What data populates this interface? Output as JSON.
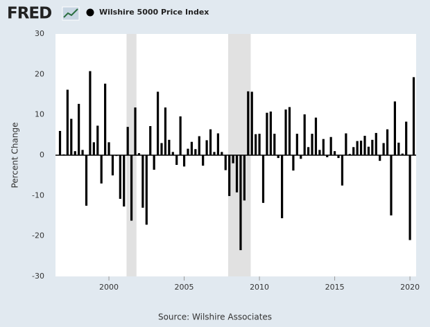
{
  "logo": "FRED",
  "chart_data": {
    "type": "bar",
    "y_label": "Percent Change",
    "source": "Source: Wilshire Associates",
    "series": [
      {
        "name": "Wilshire 5000 Price Index",
        "color": "#000000",
        "values": [
          6,
          0.2,
          16.2,
          9,
          1,
          12.7,
          1.3,
          -12.5,
          20.8,
          3.2,
          7.3,
          -7,
          17.7,
          3.2,
          -5,
          -0.2,
          -10.8,
          -12.7,
          7,
          -16.2,
          11.8,
          0.5,
          -13,
          -17.2,
          7.2,
          -3.6,
          15.7,
          3,
          11.8,
          3.8,
          0.8,
          -2.4,
          9.6,
          -2.8,
          1.6,
          3.3,
          1.5,
          4.7,
          -2.6,
          3.7,
          6.4,
          0.8,
          5.4,
          0.8,
          -3.7,
          -10.1,
          -2,
          -9.2,
          -23.5,
          -11.2,
          15.8,
          15.7,
          5.2,
          5.3,
          -11.8,
          10.5,
          10.8,
          5.3,
          -0.7,
          -15.6,
          11.3,
          11.9,
          -3.8,
          5.3,
          -0.9,
          10.1,
          2,
          5.3,
          9.3,
          1.3,
          4,
          -0.5,
          4.5,
          1,
          -0.7,
          -7.5,
          5.4,
          0.3,
          2,
          3.5,
          3.6,
          4.8,
          2.1,
          3.8,
          5.5,
          -1.4,
          3,
          6.4,
          -14.9,
          13.3,
          3.1,
          0.4,
          8.3,
          -21,
          19.3
        ]
      }
    ],
    "x": [
      1996.75,
      1997,
      1997.25,
      1997.5,
      1997.75,
      1998,
      1998.25,
      1998.5,
      1998.75,
      1999,
      1999.25,
      1999.5,
      1999.75,
      2000,
      2000.25,
      2000.5,
      2000.75,
      2001,
      2001.25,
      2001.5,
      2001.75,
      2002,
      2002.25,
      2002.5,
      2002.75,
      2003,
      2003.25,
      2003.5,
      2003.75,
      2004,
      2004.25,
      2004.5,
      2004.75,
      2005,
      2005.25,
      2005.5,
      2005.75,
      2006,
      2006.25,
      2006.5,
      2006.75,
      2007,
      2007.25,
      2007.5,
      2007.75,
      2008,
      2008.25,
      2008.5,
      2008.75,
      2009,
      2009.25,
      2009.5,
      2009.75,
      2010,
      2010.25,
      2010.5,
      2010.75,
      2011,
      2011.25,
      2011.5,
      2011.75,
      2012,
      2012.25,
      2012.5,
      2012.75,
      2013,
      2013.25,
      2013.5,
      2013.75,
      2014,
      2014.25,
      2014.5,
      2014.75,
      2015,
      2015.25,
      2015.5,
      2015.75,
      2016,
      2016.25,
      2016.5,
      2016.75,
      2017,
      2017.25,
      2017.5,
      2017.75,
      2018,
      2018.25,
      2018.5,
      2018.75,
      2019,
      2019.25,
      2019.5,
      2019.75,
      2020,
      2020.25
    ],
    "shaded_ranges": [
      [
        2001.17,
        2001.83
      ],
      [
        2007.92,
        2009.42
      ]
    ],
    "xlim": [
      1996.45,
      2020.41
    ],
    "xticks": [
      2000,
      2005,
      2010,
      2015,
      2020
    ],
    "ylim": [
      -30,
      30
    ],
    "yticks": [
      -30,
      -20,
      -10,
      0,
      10,
      20,
      30
    ],
    "grid": false
  }
}
